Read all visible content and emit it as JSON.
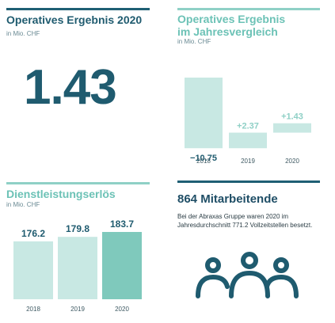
{
  "panels": {
    "result": {
      "title": "Operatives Ergebnis 2020",
      "unit": "in Mio. CHF",
      "value": "1.43"
    },
    "comparison": {
      "title_line1": "Operatives Ergebnis",
      "title_line2": "im Jahresvergleich",
      "unit": "in Mio. CHF"
    },
    "revenue": {
      "title": "Dienstleistungserlös",
      "unit": "in Mio. CHF"
    },
    "employees": {
      "title": "864 Mitarbeitende",
      "description": "Bei der Abraxas Gruppe waren 2020 im Jahresdurchschnitt 771.2 Vollzeitstellen besetzt.",
      "icon": "people-group-icon"
    }
  },
  "colors": {
    "dark": "#1f5b6f",
    "light_teal": "#8fd0c6",
    "bar_light": "#c8e8e3",
    "bar_dark": "#7fc9bc",
    "waterfall_bar": "#c8e8e3"
  },
  "chart_data": [
    {
      "type": "bar",
      "subtype": "waterfall",
      "title": "Operatives Ergebnis im Jahresvergleich",
      "ylabel": "in Mio. CHF",
      "categories": [
        "2018",
        "2019",
        "2020"
      ],
      "values": [
        -10.75,
        2.37,
        1.43
      ],
      "labels": [
        "−10.75",
        "+2.37",
        "+1.43"
      ],
      "grid": false
    },
    {
      "type": "bar",
      "title": "Dienstleistungserlös",
      "ylabel": "in Mio. CHF",
      "categories": [
        "2018",
        "2019",
        "2020"
      ],
      "values": [
        176.2,
        179.8,
        183.7
      ],
      "labels": [
        "176.2",
        "179.8",
        "183.7"
      ],
      "grid": false
    }
  ]
}
